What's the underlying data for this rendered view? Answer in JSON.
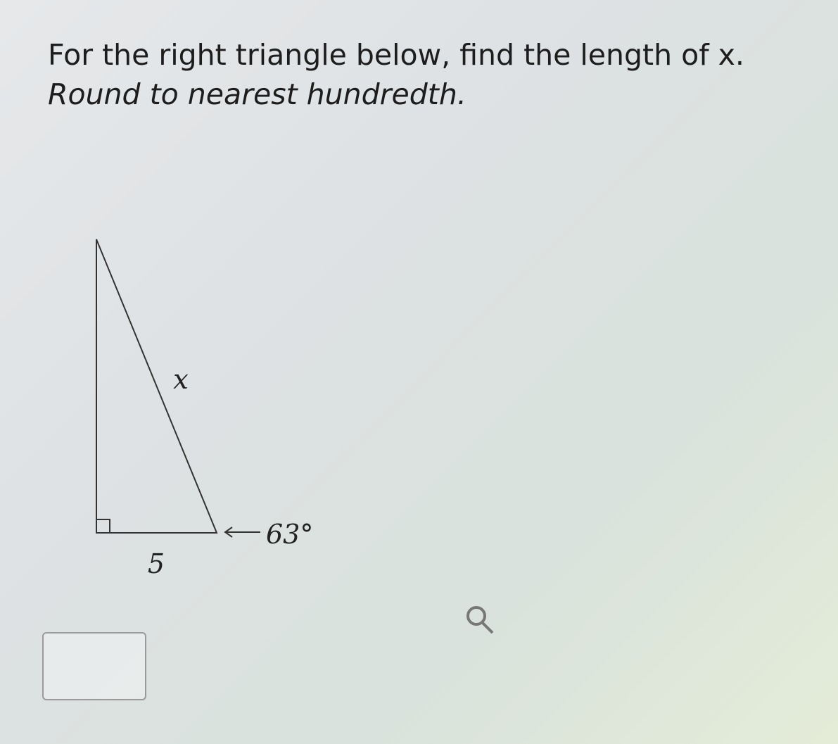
{
  "prompt": {
    "line1": "For the right triangle below, find the length of x.",
    "line2": "Round to nearest hundredth."
  },
  "triangle": {
    "hypotenuse_label": "x",
    "base_label": "5",
    "angle_label": "63°"
  }
}
